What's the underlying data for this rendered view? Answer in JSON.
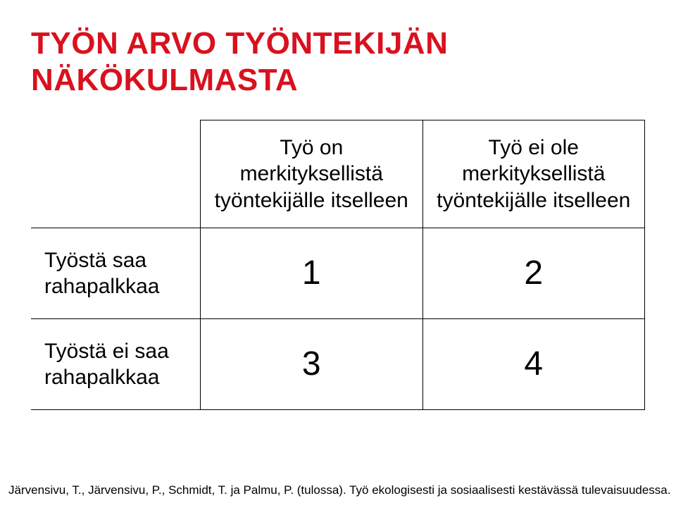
{
  "title_color": "#d9111e",
  "title": "TYÖN ARVO TYÖNTEKIJÄN NÄKÖKULMASTA",
  "headers": {
    "col1": "Työ on merkityksellistä työntekijälle itselleen",
    "col2": "Työ ei ole merkityksellistä työntekijälle itselleen"
  },
  "rows": [
    {
      "label": "Työstä saa rahapalkkaa",
      "c1": "1",
      "c2": "2"
    },
    {
      "label": "Työstä ei saa rahapalkkaa",
      "c1": "3",
      "c2": "4"
    }
  ],
  "citation": "Järvensivu, T., Järvensivu, P., Schmidt, T. ja Palmu, P. (tulossa). Työ ekologisesti ja sosiaalisesti kestävässä tulevaisuudessa."
}
